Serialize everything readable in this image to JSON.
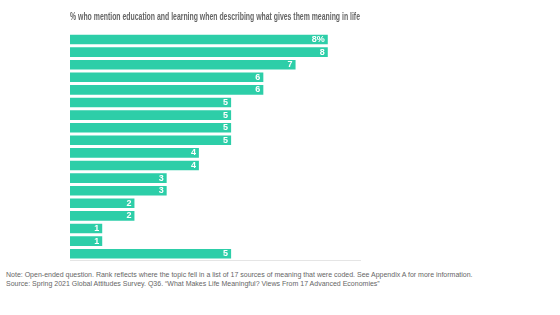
{
  "chart_data": {
    "type": "bar",
    "orientation": "horizontal",
    "title": "% who mention education and learning when describing what gives them meaning in life",
    "categories": [
      null,
      null,
      null,
      null,
      null,
      null,
      null,
      null,
      null,
      null,
      null,
      null,
      null,
      null,
      null,
      null,
      null,
      null
    ],
    "values": [
      8,
      8,
      7,
      6,
      6,
      5,
      5,
      5,
      5,
      4,
      4,
      3,
      3,
      2,
      2,
      1,
      1,
      5
    ],
    "value_labels": [
      "8%",
      "8",
      "7",
      "6",
      "6",
      "5",
      "5",
      "5",
      "5",
      "4",
      "4",
      "3",
      "3",
      "2",
      "2",
      "1",
      "1",
      "5"
    ],
    "data_labels": true,
    "color": "#2dcea8",
    "xlim": [
      0,
      9
    ],
    "grid": false,
    "tick_labels": false,
    "annotations": [
      "Note: Open-ended question. Rank reflects where the topic fell in a list of 17 sources of meaning that were coded. See Appendix A for more information.",
      "Source: Spring 2021 Global Attitudes Survey. Q36. “What Makes Life Meaningful? Views From 17 Advanced Economies”"
    ]
  }
}
